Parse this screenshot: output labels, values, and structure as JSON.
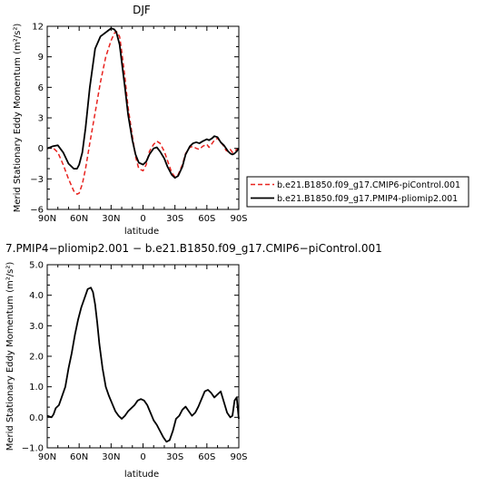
{
  "chart_data": [
    {
      "type": "line",
      "title": "DJF",
      "xlabel": "latitude",
      "ylabel": "Merid Stationary Eddy Momentum",
      "ylabel_unit": "(m²/s²)",
      "xlim": [
        -90,
        90
      ],
      "ylim": [
        -6,
        12
      ],
      "x_ticks": [
        -90,
        -60,
        -30,
        0,
        30,
        60,
        90
      ],
      "x_tick_labels": [
        "90N",
        "60N",
        "30N",
        "0",
        "30S",
        "60S",
        "90S"
      ],
      "y_ticks": [
        -6,
        -3,
        0,
        3,
        6,
        9,
        12
      ],
      "y_tick_labels": [
        "−6",
        "−3",
        "0",
        "3",
        "6",
        "9",
        "12"
      ],
      "legend_position": "right",
      "series": [
        {
          "name": "b.e21.B1850.f09_g17.CMIP6-piControl.001",
          "color": "#e8231f",
          "dash": "dashed",
          "x": [
            -90,
            -85,
            -80,
            -75,
            -70,
            -65,
            -62,
            -60,
            -57,
            -54,
            -50,
            -45,
            -40,
            -35,
            -30,
            -27,
            -25,
            -22,
            -20,
            -17,
            -14,
            -10,
            -7,
            -4,
            0,
            3,
            6,
            10,
            13,
            16,
            20,
            23,
            27,
            30,
            33,
            37,
            40,
            44,
            47,
            50,
            53,
            56,
            60,
            62,
            65,
            67,
            70,
            73,
            76,
            78,
            80,
            82,
            84,
            86,
            88,
            90
          ],
          "y": [
            0.0,
            0.1,
            -0.4,
            -1.6,
            -3.0,
            -4.2,
            -4.5,
            -4.4,
            -3.5,
            -2.0,
            0.5,
            3.5,
            6.5,
            9.0,
            10.6,
            11.3,
            11.5,
            11.0,
            9.5,
            7.0,
            4.0,
            1.2,
            -0.8,
            -2.0,
            -2.2,
            -1.6,
            -0.3,
            0.4,
            0.7,
            0.5,
            -0.3,
            -1.2,
            -2.4,
            -2.8,
            -2.6,
            -1.6,
            -0.5,
            0.1,
            0.2,
            0.0,
            -0.1,
            0.2,
            0.4,
            0.1,
            0.5,
            0.8,
            1.0,
            0.6,
            0.2,
            -0.2,
            -0.3,
            -0.1,
            -0.4,
            -0.3,
            -0.1,
            0.0
          ]
        },
        {
          "name": "b.e21.B1850.f09_g17.PMIP4-pliomip2.001",
          "color": "#000000",
          "dash": "solid",
          "x": [
            -90,
            -85,
            -80,
            -75,
            -70,
            -65,
            -62,
            -60,
            -57,
            -54,
            -50,
            -45,
            -40,
            -35,
            -30,
            -27,
            -25,
            -22,
            -20,
            -17,
            -14,
            -10,
            -7,
            -4,
            0,
            3,
            6,
            10,
            13,
            16,
            20,
            23,
            27,
            30,
            33,
            37,
            40,
            44,
            47,
            50,
            53,
            56,
            60,
            62,
            65,
            67,
            70,
            73,
            76,
            78,
            80,
            82,
            84,
            86,
            88,
            90
          ],
          "y": [
            0.0,
            0.2,
            0.3,
            -0.4,
            -1.5,
            -2.0,
            -2.0,
            -1.6,
            -0.4,
            2.0,
            6.0,
            9.8,
            11.0,
            11.4,
            11.8,
            11.7,
            11.4,
            10.2,
            8.5,
            6.0,
            3.3,
            0.8,
            -0.6,
            -1.4,
            -1.6,
            -1.3,
            -0.6,
            0.0,
            0.1,
            -0.3,
            -1.0,
            -1.8,
            -2.6,
            -2.9,
            -2.7,
            -1.8,
            -0.6,
            0.2,
            0.5,
            0.6,
            0.5,
            0.7,
            0.9,
            0.8,
            1.0,
            1.2,
            1.1,
            0.6,
            0.3,
            0.0,
            -0.3,
            -0.5,
            -0.6,
            -0.5,
            -0.3,
            0.0
          ]
        }
      ]
    },
    {
      "type": "line",
      "title": "7.PMIP4−pliomip2.001 − b.e21.B1850.f09_g17.CMIP6−piControl.001",
      "xlabel": "latitude",
      "ylabel": "Merid Stationary Eddy Momentum",
      "ylabel_unit": "(m²/s²)",
      "xlim": [
        -90,
        90
      ],
      "ylim": [
        -1,
        5
      ],
      "x_ticks": [
        -90,
        -60,
        -30,
        0,
        30,
        60,
        90
      ],
      "x_tick_labels": [
        "90N",
        "60N",
        "30N",
        "0",
        "30S",
        "60S",
        "90S"
      ],
      "y_ticks": [
        -1,
        0,
        1,
        2,
        3,
        4,
        5
      ],
      "y_tick_labels": [
        "−1.0",
        "0.0",
        "1.0",
        "2.0",
        "3.0",
        "4.0",
        "5.0"
      ],
      "series": [
        {
          "color": "#000000",
          "dash": "solid",
          "x": [
            -90,
            -86,
            -84,
            -82,
            -79,
            -76,
            -73,
            -70,
            -67,
            -64,
            -61,
            -58,
            -55,
            -52,
            -49,
            -47,
            -45,
            -43,
            -41,
            -38,
            -35,
            -32,
            -29,
            -26,
            -23,
            -20,
            -17,
            -14,
            -11,
            -8,
            -5,
            -2,
            1,
            4,
            7,
            10,
            13,
            16,
            19,
            22,
            25,
            28,
            31,
            34,
            37,
            40,
            43,
            46,
            49,
            52,
            55,
            58,
            61,
            64,
            67,
            70,
            73,
            76,
            79,
            82,
            84,
            86,
            88,
            90
          ],
          "y": [
            0.05,
            0.0,
            0.1,
            0.3,
            0.4,
            0.7,
            1.0,
            1.6,
            2.1,
            2.7,
            3.2,
            3.6,
            3.9,
            4.2,
            4.25,
            4.1,
            3.7,
            3.1,
            2.4,
            1.6,
            1.0,
            0.7,
            0.45,
            0.2,
            0.05,
            -0.05,
            0.05,
            0.2,
            0.3,
            0.4,
            0.55,
            0.6,
            0.55,
            0.4,
            0.15,
            -0.1,
            -0.25,
            -0.45,
            -0.65,
            -0.8,
            -0.75,
            -0.45,
            -0.05,
            0.05,
            0.25,
            0.35,
            0.2,
            0.05,
            0.15,
            0.35,
            0.6,
            0.85,
            0.9,
            0.8,
            0.65,
            0.75,
            0.85,
            0.5,
            0.15,
            0.0,
            0.05,
            0.55,
            0.65,
            -0.05
          ]
        }
      ]
    }
  ]
}
